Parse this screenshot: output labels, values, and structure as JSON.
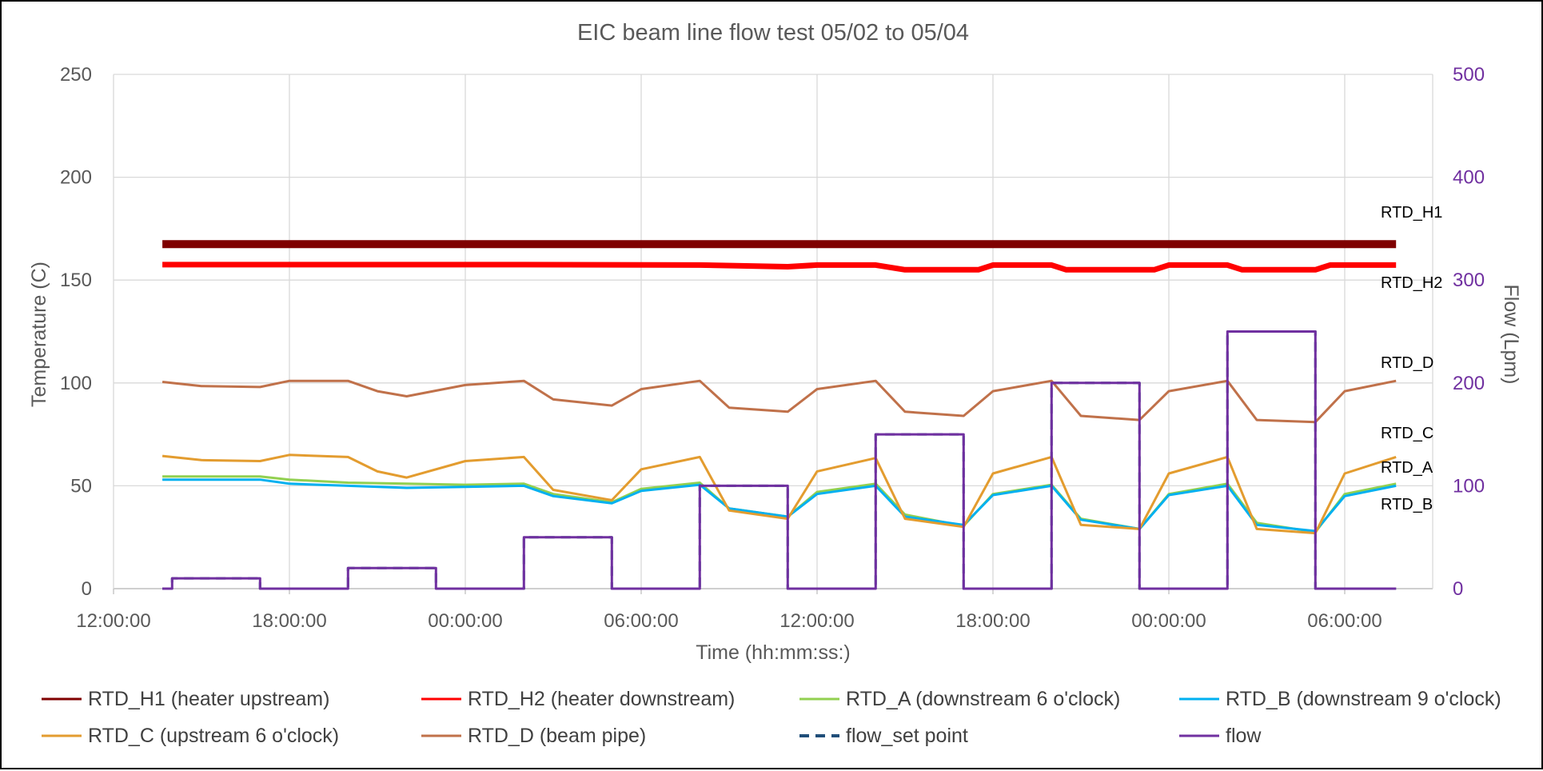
{
  "chart_data": {
    "type": "line",
    "title": "EIC beam line flow test 05/02 to 05/04",
    "xlabel": "Time (hh:mm:ss:)",
    "ylabel": "Temperature (C)",
    "y2label": "Flow (Lpm)",
    "ylim": [
      0,
      250
    ],
    "y2lim": [
      0,
      500
    ],
    "xlim": [
      "05/02 12:00:00",
      "05/04 09:00:00"
    ],
    "x_ticks": [
      "12:00:00",
      "18:00:00",
      "00:00:00",
      "06:00:00",
      "12:00:00",
      "18:00:00",
      "00:00:00",
      "06:00:00"
    ],
    "y_ticks": [
      "0",
      "50",
      "100",
      "150",
      "200",
      "250"
    ],
    "y2_ticks": [
      "0",
      "100",
      "200",
      "300",
      "400",
      "500"
    ],
    "grid": true,
    "legend_position": "bottom",
    "right_labels": [
      "RTD_H1",
      "RTD_H2",
      "RTD_D",
      "RTD_C",
      "RTD_A",
      "RTD_B"
    ],
    "flow_color": "#7030A0",
    "series": [
      {
        "name": "RTD_H1 (heater upstream)",
        "color": "#7F0000",
        "axis": "left",
        "x": [
          "05/02 13:40",
          "05/02 22:00",
          "05/03 08:00",
          "05/03 18:00",
          "05/04 04:00",
          "05/04 07:45"
        ],
        "y": [
          167.5,
          167.5,
          167.5,
          167.5,
          167.5,
          167.5
        ]
      },
      {
        "name": "RTD_H2 (heater downstream)",
        "color": "#FF0000",
        "axis": "left",
        "x": [
          "05/02 13:40",
          "05/03 02:00",
          "05/03 08:00",
          "05/03 11:00",
          "05/03 12:00",
          "05/03 14:00",
          "05/03 15:00",
          "05/03 17:30",
          "05/03 18:00",
          "05/03 20:00",
          "05/03 20:30",
          "05/03 23:30",
          "05/04 00:00",
          "05/04 02:00",
          "05/04 02:30",
          "05/04 05:00",
          "05/04 05:30",
          "05/04 07:45"
        ],
        "y": [
          157.5,
          157.5,
          157.3,
          156.5,
          157.3,
          157.3,
          155.0,
          155.0,
          157.3,
          157.3,
          155.0,
          155.0,
          157.3,
          157.3,
          155.0,
          155.0,
          157.3,
          157.3
        ]
      },
      {
        "name": "RTD_A (downstream 6 o'clock)",
        "color": "#92D050",
        "axis": "left",
        "x": [
          "05/02 13:40",
          "05/02 17:00",
          "05/02 18:00",
          "05/02 20:00",
          "05/02 22:00",
          "05/03 00:00",
          "05/03 02:00",
          "05/03 03:00",
          "05/03 05:00",
          "05/03 06:00",
          "05/03 08:00",
          "05/03 09:00",
          "05/03 11:00",
          "05/03 12:00",
          "05/03 14:00",
          "05/03 15:00",
          "05/03 17:00",
          "05/03 18:00",
          "05/03 20:00",
          "05/03 21:00",
          "05/03 23:00",
          "05/04 00:00",
          "05/04 02:00",
          "05/04 03:00",
          "05/04 05:00",
          "05/04 06:00",
          "05/04 07:45"
        ],
        "y": [
          54.5,
          54.5,
          53.0,
          51.5,
          51.0,
          50.5,
          51.0,
          46.0,
          42.0,
          48.5,
          51.5,
          39.0,
          35.0,
          47.0,
          51.0,
          36.0,
          30.5,
          46.0,
          50.5,
          34.0,
          29.0,
          46.0,
          51.0,
          32.0,
          27.5,
          46.0,
          51.0
        ]
      },
      {
        "name": "RTD_B (downstream 9 o'clock)",
        "color": "#00B0F0",
        "axis": "left",
        "x": [
          "05/02 13:40",
          "05/02 17:00",
          "05/02 18:00",
          "05/02 20:00",
          "05/02 22:00",
          "05/03 00:00",
          "05/03 02:00",
          "05/03 03:00",
          "05/03 05:00",
          "05/03 06:00",
          "05/03 08:00",
          "05/03 09:00",
          "05/03 11:00",
          "05/03 12:00",
          "05/03 14:00",
          "05/03 15:00",
          "05/03 17:00",
          "05/03 18:00",
          "05/03 20:00",
          "05/03 21:00",
          "05/03 23:00",
          "05/04 00:00",
          "05/04 02:00",
          "05/04 03:00",
          "05/04 05:00",
          "05/04 06:00",
          "05/04 07:45"
        ],
        "y": [
          53.0,
          53.0,
          51.0,
          50.0,
          49.0,
          49.5,
          50.0,
          45.0,
          41.5,
          47.5,
          50.5,
          39.0,
          35.0,
          46.0,
          50.0,
          35.0,
          31.0,
          45.5,
          50.0,
          33.5,
          29.0,
          45.5,
          50.0,
          31.0,
          28.0,
          45.0,
          50.0
        ]
      },
      {
        "name": "RTD_C (upstream 6 o'clock)",
        "color": "#E39C2F",
        "axis": "left",
        "x": [
          "05/02 13:40",
          "05/02 15:00",
          "05/02 17:00",
          "05/02 18:00",
          "05/02 20:00",
          "05/02 21:00",
          "05/02 22:00",
          "05/03 00:00",
          "05/03 02:00",
          "05/03 03:00",
          "05/03 05:00",
          "05/03 06:00",
          "05/03 08:00",
          "05/03 09:00",
          "05/03 11:00",
          "05/03 12:00",
          "05/03 14:00",
          "05/03 15:00",
          "05/03 17:00",
          "05/03 18:00",
          "05/03 20:00",
          "05/03 21:00",
          "05/03 23:00",
          "05/04 00:00",
          "05/04 02:00",
          "05/04 03:00",
          "05/04 05:00",
          "05/04 06:00",
          "05/04 07:45"
        ],
        "y": [
          64.5,
          62.5,
          62.0,
          65.0,
          64.0,
          57.0,
          54.0,
          62.0,
          64.0,
          48.0,
          43.0,
          58.0,
          64.0,
          38.0,
          34.0,
          57.0,
          63.5,
          34.0,
          30.0,
          56.0,
          64.0,
          31.0,
          29.0,
          56.0,
          64.0,
          29.0,
          27.0,
          56.0,
          64.0
        ]
      },
      {
        "name": "RTD_D (beam pipe)",
        "color": "#C0714A",
        "axis": "left",
        "x": [
          "05/02 13:40",
          "05/02 15:00",
          "05/02 17:00",
          "05/02 18:00",
          "05/02 20:00",
          "05/02 21:00",
          "05/02 22:00",
          "05/03 00:00",
          "05/03 02:00",
          "05/03 03:00",
          "05/03 05:00",
          "05/03 06:00",
          "05/03 08:00",
          "05/03 09:00",
          "05/03 11:00",
          "05/03 12:00",
          "05/03 14:00",
          "05/03 15:00",
          "05/03 17:00",
          "05/03 18:00",
          "05/03 20:00",
          "05/03 21:00",
          "05/03 23:00",
          "05/04 00:00",
          "05/04 02:00",
          "05/04 03:00",
          "05/04 05:00",
          "05/04 06:00",
          "05/04 07:45"
        ],
        "y": [
          100.5,
          98.5,
          98.0,
          101.0,
          101.0,
          96.0,
          93.5,
          99.0,
          101.0,
          92.0,
          89.0,
          97.0,
          101.0,
          88.0,
          86.0,
          97.0,
          101.0,
          86.0,
          84.0,
          96.0,
          101.0,
          84.0,
          82.0,
          96.0,
          101.0,
          82.0,
          81.0,
          96.0,
          101.0
        ]
      },
      {
        "name": "flow_set point",
        "color": "#1F4E79",
        "axis": "right",
        "dashed": true,
        "x": [
          "05/02 13:40",
          "05/02 14:00",
          "05/02 14:00",
          "05/02 17:00",
          "05/02 17:00",
          "05/02 20:00",
          "05/02 20:00",
          "05/02 23:00",
          "05/02 23:00",
          "05/03 02:00",
          "05/03 02:00",
          "05/03 05:00",
          "05/03 05:00",
          "05/03 08:00",
          "05/03 08:00",
          "05/03 11:00",
          "05/03 11:00",
          "05/03 14:00",
          "05/03 14:00",
          "05/03 17:00",
          "05/03 17:00",
          "05/03 20:00",
          "05/03 20:00",
          "05/03 23:00",
          "05/03 23:00",
          "05/04 02:00",
          "05/04 02:00",
          "05/04 05:00",
          "05/04 05:00",
          "05/04 07:45"
        ],
        "y": [
          0,
          0,
          10,
          10,
          0,
          0,
          20,
          20,
          0,
          0,
          50,
          50,
          0,
          0,
          100,
          100,
          0,
          0,
          150,
          150,
          0,
          0,
          200,
          200,
          0,
          0,
          250,
          250,
          0,
          0
        ]
      },
      {
        "name": "flow",
        "color": "#7030A0",
        "axis": "right",
        "x": [
          "05/02 13:40",
          "05/02 14:00",
          "05/02 14:00",
          "05/02 17:00",
          "05/02 17:00",
          "05/02 20:00",
          "05/02 20:00",
          "05/02 23:00",
          "05/02 23:00",
          "05/03 02:00",
          "05/03 02:00",
          "05/03 05:00",
          "05/03 05:00",
          "05/03 08:00",
          "05/03 08:00",
          "05/03 11:00",
          "05/03 11:00",
          "05/03 14:00",
          "05/03 14:00",
          "05/03 17:00",
          "05/03 17:00",
          "05/03 20:00",
          "05/03 20:00",
          "05/03 23:00",
          "05/03 23:00",
          "05/04 02:00",
          "05/04 02:00",
          "05/04 05:00",
          "05/04 05:00",
          "05/04 07:45"
        ],
        "y": [
          0,
          0,
          10,
          10,
          0,
          0,
          20,
          20,
          0,
          0,
          50,
          50,
          0,
          0,
          100,
          100,
          0,
          0,
          150,
          150,
          0,
          0,
          200,
          200,
          0,
          0,
          250,
          250,
          0,
          0
        ]
      }
    ]
  }
}
